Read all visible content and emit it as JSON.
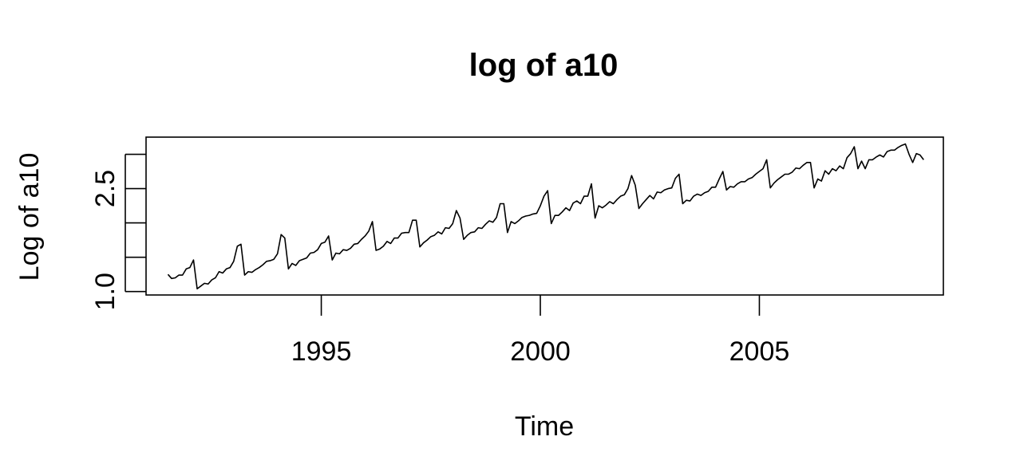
{
  "chart_data": {
    "type": "line",
    "title": "log of a10",
    "xlabel": "Time",
    "ylabel": "Log of a10",
    "xlim": [
      1991.0,
      2009.2
    ],
    "ylim": [
      0.95,
      3.25
    ],
    "x_ticks": [
      1995,
      2000,
      2005
    ],
    "y_ticks": [
      1.0,
      1.5,
      2.0,
      2.5,
      3.0
    ],
    "y_tick_labels": [
      "1.0",
      "",
      "",
      "2.5",
      ""
    ],
    "grid": false,
    "series": [
      {
        "start": 1991.5,
        "frequency": 12,
        "color": "#000000",
        "values": [
          1.25,
          1.19,
          1.2,
          1.24,
          1.24,
          1.33,
          1.35,
          1.46,
          1.04,
          1.08,
          1.12,
          1.11,
          1.17,
          1.2,
          1.29,
          1.27,
          1.33,
          1.35,
          1.44,
          1.66,
          1.69,
          1.24,
          1.29,
          1.28,
          1.32,
          1.35,
          1.39,
          1.44,
          1.45,
          1.47,
          1.55,
          1.83,
          1.78,
          1.33,
          1.41,
          1.38,
          1.45,
          1.47,
          1.49,
          1.56,
          1.57,
          1.61,
          1.7,
          1.72,
          1.81,
          1.46,
          1.56,
          1.55,
          1.61,
          1.6,
          1.63,
          1.69,
          1.7,
          1.76,
          1.81,
          1.88,
          2.02,
          1.6,
          1.62,
          1.66,
          1.73,
          1.7,
          1.78,
          1.78,
          1.85,
          1.86,
          1.86,
          2.04,
          2.04,
          1.65,
          1.71,
          1.75,
          1.8,
          1.82,
          1.87,
          1.84,
          1.93,
          1.92,
          1.99,
          2.18,
          2.07,
          1.76,
          1.82,
          1.86,
          1.87,
          1.93,
          1.92,
          1.98,
          2.03,
          2.01,
          2.08,
          2.28,
          2.28,
          1.86,
          2.02,
          1.99,
          2.03,
          2.08,
          2.1,
          2.11,
          2.13,
          2.14,
          2.25,
          2.39,
          2.47,
          1.99,
          2.11,
          2.11,
          2.16,
          2.22,
          2.18,
          2.29,
          2.32,
          2.28,
          2.39,
          2.39,
          2.57,
          2.07,
          2.25,
          2.22,
          2.26,
          2.31,
          2.28,
          2.34,
          2.39,
          2.41,
          2.5,
          2.69,
          2.55,
          2.21,
          2.28,
          2.34,
          2.4,
          2.35,
          2.45,
          2.44,
          2.48,
          2.5,
          2.51,
          2.65,
          2.71,
          2.28,
          2.33,
          2.32,
          2.39,
          2.42,
          2.4,
          2.44,
          2.46,
          2.52,
          2.52,
          2.64,
          2.75,
          2.48,
          2.53,
          2.52,
          2.57,
          2.6,
          2.6,
          2.64,
          2.66,
          2.71,
          2.75,
          2.79,
          2.92,
          2.51,
          2.58,
          2.63,
          2.67,
          2.71,
          2.71,
          2.74,
          2.8,
          2.79,
          2.84,
          2.88,
          2.88,
          2.51,
          2.64,
          2.61,
          2.76,
          2.71,
          2.79,
          2.76,
          2.83,
          2.79,
          2.95,
          3.01,
          3.11,
          2.79,
          2.9,
          2.79,
          2.92,
          2.92,
          2.96,
          2.99,
          2.96,
          3.04,
          3.06,
          3.06,
          3.1,
          3.13,
          3.15,
          3.0,
          2.88,
          3.01,
          2.99,
          2.92
        ]
      }
    ]
  }
}
